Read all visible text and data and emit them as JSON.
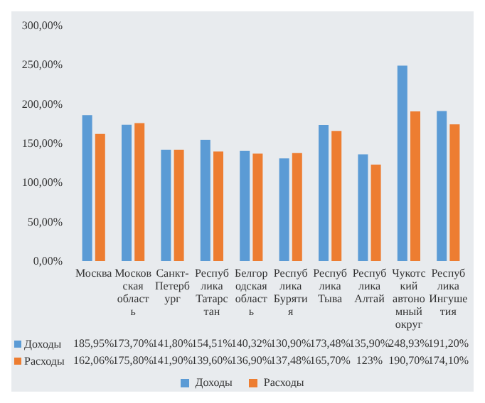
{
  "chart_data": {
    "type": "bar",
    "categories": [
      "Москва",
      "Московская область",
      "Санкт-Петербург",
      "Республика Татарстан",
      "Белгородская область",
      "Республика Бурятия",
      "Республика Тыва",
      "Республика Алтай",
      "Чукотский автономный округ",
      "Республика Ингушетия"
    ],
    "series": [
      {
        "name": "Доходы",
        "color": "#5b9bd5",
        "values": [
          185.95,
          173.7,
          141.8,
          154.51,
          140.32,
          130.9,
          173.48,
          135.9,
          248.93,
          191.2
        ],
        "value_labels": [
          "185,95%",
          "173,70%",
          "141,80%",
          "154,51%",
          "140,32%",
          "130,90%",
          "173,48%",
          "135,90%",
          "248,93%",
          "191,20%"
        ]
      },
      {
        "name": "Расходы",
        "color": "#ed7d31",
        "values": [
          162.06,
          175.8,
          141.9,
          139.6,
          136.9,
          137.48,
          165.7,
          123,
          190.7,
          174.1
        ],
        "value_labels": [
          "162,06%",
          "175,80%",
          "141,90%",
          "139,60%",
          "136,90%",
          "137,48%",
          "165,70%",
          "123%",
          "190,70%",
          "174,10%"
        ]
      }
    ],
    "ylim": [
      0,
      300
    ],
    "yticks": [
      {
        "value": 0,
        "label": "0,00%"
      },
      {
        "value": 50,
        "label": "50,00%"
      },
      {
        "value": 100,
        "label": "100,00%"
      },
      {
        "value": 150,
        "label": "150,00%"
      },
      {
        "value": 200,
        "label": "200,00%"
      },
      {
        "value": 250,
        "label": "250,00%"
      },
      {
        "value": 300,
        "label": "300,00%"
      }
    ],
    "grid": false,
    "legend": "bottom"
  }
}
